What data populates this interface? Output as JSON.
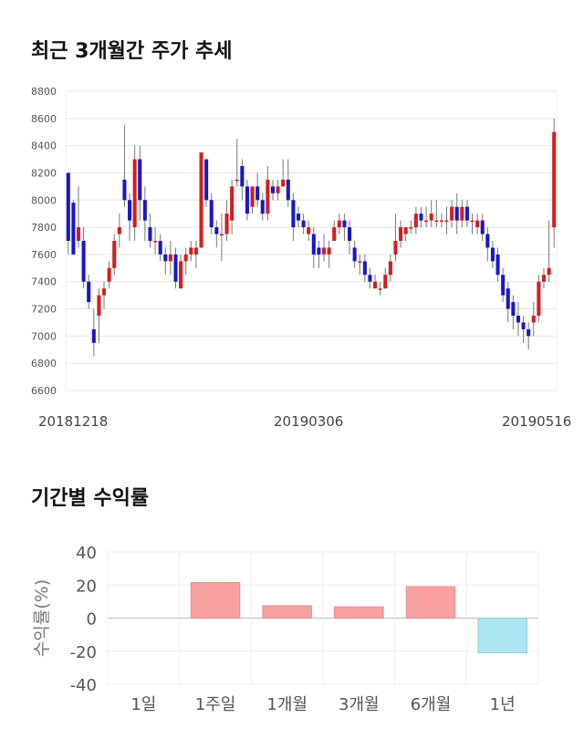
{
  "header": {
    "price_trend_title": "최근 3개월간 주가 추세",
    "returns_title": "기간별 수익률"
  },
  "chart_data": [
    {
      "type": "candlestick",
      "ylim": [
        6600,
        8800
      ],
      "yticks": [
        "8800",
        "8600",
        "8400",
        "8200",
        "8000",
        "7800",
        "7600",
        "7400",
        "7200",
        "7000",
        "6800",
        "6600"
      ],
      "xlabels": [
        "20181218",
        "20190306",
        "20190516"
      ],
      "grid": true,
      "up_color": "#d41d1d",
      "down_color": "#1717c8",
      "candles": [
        [
          8200,
          7700,
          8200,
          7600
        ],
        [
          7980,
          7600,
          8000,
          7600
        ],
        [
          7700,
          7800,
          8100,
          7650
        ],
        [
          7700,
          7400,
          7800,
          7350
        ],
        [
          7400,
          7250,
          7450,
          7200
        ],
        [
          7050,
          6950,
          7200,
          6850
        ],
        [
          7150,
          7300,
          7350,
          6950
        ],
        [
          7300,
          7350,
          7400,
          7200
        ],
        [
          7400,
          7500,
          7550,
          7350
        ],
        [
          7500,
          7700,
          7750,
          7450
        ],
        [
          7750,
          7800,
          7900,
          7650
        ],
        [
          8150,
          8000,
          8550,
          7950
        ],
        [
          8000,
          7850,
          8050,
          7700
        ],
        [
          7800,
          8300,
          8400,
          7700
        ],
        [
          8300,
          8000,
          8400,
          7850
        ],
        [
          8000,
          7850,
          8100,
          7700
        ],
        [
          7800,
          7700,
          7900,
          7650
        ],
        [
          7700,
          7700,
          7800,
          7600
        ],
        [
          7700,
          7600,
          7750,
          7550
        ],
        [
          7600,
          7550,
          7650,
          7450
        ],
        [
          7550,
          7600,
          7700,
          7450
        ],
        [
          7600,
          7400,
          7650,
          7350
        ],
        [
          7350,
          7550,
          7600,
          7350
        ],
        [
          7550,
          7600,
          7650,
          7450
        ],
        [
          7600,
          7650,
          7700,
          7550
        ],
        [
          7600,
          7650,
          7700,
          7500
        ],
        [
          7650,
          8350,
          8350,
          7650
        ],
        [
          8300,
          8000,
          8300,
          7950
        ],
        [
          8000,
          7800,
          8050,
          7750
        ],
        [
          7800,
          7750,
          7850,
          7650
        ],
        [
          7750,
          7750,
          7900,
          7550
        ],
        [
          7750,
          7900,
          8000,
          7700
        ],
        [
          7850,
          8100,
          8150,
          7750
        ],
        [
          8150,
          8150,
          8450,
          8100
        ],
        [
          8250,
          8100,
          8300,
          8000
        ],
        [
          8100,
          7900,
          8150,
          7850
        ],
        [
          7950,
          8100,
          8100,
          7900
        ],
        [
          8100,
          8000,
          8200,
          7950
        ],
        [
          8000,
          7900,
          8050,
          7850
        ],
        [
          7900,
          8150,
          8250,
          7850
        ],
        [
          8100,
          8050,
          8150,
          8000
        ],
        [
          8050,
          8100,
          8150,
          8000
        ],
        [
          8100,
          8150,
          8300,
          8100
        ],
        [
          8150,
          8000,
          8300,
          7950
        ],
        [
          8000,
          7800,
          8050,
          7700
        ],
        [
          7900,
          7850,
          7950,
          7800
        ],
        [
          7850,
          7800,
          7900,
          7750
        ],
        [
          7750,
          7800,
          7850,
          7700
        ],
        [
          7750,
          7600,
          7800,
          7500
        ],
        [
          7650,
          7600,
          7700,
          7500
        ],
        [
          7600,
          7650,
          7750,
          7550
        ],
        [
          7600,
          7650,
          7700,
          7500
        ],
        [
          7700,
          7800,
          7850,
          7700
        ],
        [
          7800,
          7850,
          7900,
          7750
        ],
        [
          7850,
          7800,
          7900,
          7700
        ],
        [
          7800,
          7700,
          7850,
          7600
        ],
        [
          7650,
          7550,
          7700,
          7500
        ],
        [
          7550,
          7550,
          7600,
          7450
        ],
        [
          7550,
          7450,
          7600,
          7400
        ],
        [
          7450,
          7400,
          7500,
          7350
        ],
        [
          7350,
          7400,
          7450,
          7350
        ],
        [
          7350,
          7350,
          7400,
          7300
        ],
        [
          7350,
          7450,
          7500,
          7350
        ],
        [
          7450,
          7550,
          7600,
          7400
        ],
        [
          7600,
          7700,
          7900,
          7550
        ],
        [
          7700,
          7800,
          7850,
          7650
        ],
        [
          7750,
          7800,
          7800,
          7700
        ],
        [
          7800,
          7800,
          7850,
          7750
        ],
        [
          7800,
          7900,
          7950,
          7750
        ],
        [
          7900,
          7850,
          7950,
          7800
        ],
        [
          7850,
          7850,
          7950,
          7800
        ],
        [
          7850,
          7900,
          8000,
          7800
        ],
        [
          7850,
          7850,
          8000,
          7800
        ],
        [
          7850,
          7850,
          7900,
          7800
        ],
        [
          7850,
          7850,
          7950,
          7750
        ],
        [
          7850,
          7950,
          8000,
          7800
        ],
        [
          7950,
          7850,
          8050,
          7750
        ],
        [
          7850,
          7950,
          8000,
          7800
        ],
        [
          7950,
          7850,
          8000,
          7800
        ],
        [
          7850,
          7850,
          7900,
          7750
        ],
        [
          7800,
          7850,
          7900,
          7750
        ],
        [
          7850,
          7750,
          7900,
          7700
        ],
        [
          7750,
          7650,
          7800,
          7550
        ],
        [
          7650,
          7550,
          7700,
          7500
        ],
        [
          7600,
          7450,
          7650,
          7400
        ],
        [
          7450,
          7300,
          7500,
          7250
        ],
        [
          7350,
          7200,
          7400,
          7100
        ],
        [
          7250,
          7150,
          7300,
          7050
        ],
        [
          7150,
          7100,
          7250,
          7000
        ],
        [
          7100,
          7050,
          7150,
          6950
        ],
        [
          7050,
          7000,
          7100,
          6900
        ],
        [
          7100,
          7150,
          7250,
          7000
        ],
        [
          7150,
          7400,
          7450,
          7100
        ],
        [
          7400,
          7450,
          7500,
          7350
        ],
        [
          7450,
          7500,
          7850,
          7400
        ],
        [
          7800,
          8500,
          8600,
          7650
        ]
      ]
    },
    {
      "type": "bar",
      "ylabel": "수익률(%)",
      "ylim": [
        -40,
        40
      ],
      "yticks": [
        "40",
        "20",
        "0",
        "-20",
        "-40"
      ],
      "categories": [
        "1일",
        "1주일",
        "1개월",
        "3개월",
        "6개월",
        "1년"
      ],
      "values": [
        0,
        21.5,
        7.5,
        6.8,
        19,
        -21
      ],
      "positive_color": "#f9a0a2",
      "negative_color": "#ade6f2"
    }
  ]
}
